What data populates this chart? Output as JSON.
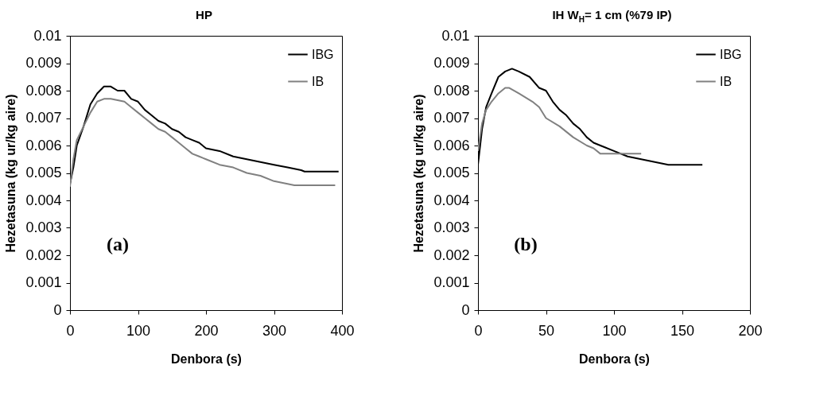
{
  "chart_data": [
    {
      "type": "line",
      "title": "HP",
      "xlabel": "Denbora (s)",
      "ylabel": "Hezetasuna (kg ur/kg aire)",
      "xlim": [
        0,
        400
      ],
      "xticks": [
        0,
        100,
        200,
        300,
        400
      ],
      "ylim": [
        0,
        0.01
      ],
      "yticks": [
        0,
        0.001,
        0.002,
        0.003,
        0.004,
        0.005,
        0.006,
        0.007,
        0.008,
        0.009,
        0.01
      ],
      "grid": false,
      "legend": "top right",
      "annotations": [
        "(a)"
      ],
      "series": [
        {
          "name": "IBG",
          "color": "#000000",
          "x": [
            0,
            5,
            10,
            20,
            30,
            40,
            50,
            60,
            70,
            80,
            90,
            100,
            110,
            120,
            130,
            140,
            150,
            160,
            170,
            180,
            190,
            200,
            220,
            240,
            260,
            280,
            300,
            320,
            340,
            345,
            395
          ],
          "values": [
            0.0046,
            0.0052,
            0.006,
            0.0067,
            0.0075,
            0.0079,
            0.00815,
            0.00815,
            0.008,
            0.008,
            0.0077,
            0.0076,
            0.0073,
            0.0071,
            0.0069,
            0.0068,
            0.0066,
            0.0065,
            0.0063,
            0.0062,
            0.0061,
            0.0059,
            0.0058,
            0.0056,
            0.0055,
            0.0054,
            0.0053,
            0.0052,
            0.0051,
            0.00505,
            0.00505
          ]
        },
        {
          "name": "IB",
          "color": "#808080",
          "x": [
            0,
            5,
            10,
            20,
            30,
            40,
            50,
            60,
            70,
            80,
            90,
            100,
            110,
            120,
            130,
            140,
            150,
            160,
            170,
            180,
            190,
            200,
            220,
            240,
            260,
            280,
            300,
            320,
            330,
            390
          ],
          "values": [
            0.0045,
            0.0055,
            0.0062,
            0.0067,
            0.0072,
            0.0076,
            0.0077,
            0.0077,
            0.00765,
            0.0076,
            0.0074,
            0.0072,
            0.007,
            0.0068,
            0.0066,
            0.0065,
            0.0063,
            0.0061,
            0.0059,
            0.0057,
            0.0056,
            0.0055,
            0.0053,
            0.0052,
            0.005,
            0.0049,
            0.0047,
            0.0046,
            0.00455,
            0.00455
          ]
        }
      ]
    },
    {
      "type": "line",
      "title": "IH W$_{H}$= 1 cm (%79 IP)",
      "xlabel": "Denbora (s)",
      "ylabel": "Hezetasuna (kg ur/kg aire)",
      "xlim": [
        0,
        200
      ],
      "xticks": [
        0,
        50,
        100,
        150,
        200
      ],
      "ylim": [
        0,
        0.01
      ],
      "yticks": [
        0,
        0.001,
        0.002,
        0.003,
        0.004,
        0.005,
        0.006,
        0.007,
        0.008,
        0.009,
        0.01
      ],
      "grid": false,
      "legend": "top right",
      "annotations": [
        "(b)"
      ],
      "series": [
        {
          "name": "IBG",
          "color": "#000000",
          "x": [
            0,
            3,
            6,
            10,
            15,
            20,
            25,
            30,
            38,
            45,
            50,
            55,
            60,
            65,
            70,
            75,
            80,
            85,
            90,
            100,
            110,
            120,
            130,
            140,
            165
          ],
          "values": [
            0.0053,
            0.0066,
            0.0074,
            0.0079,
            0.0085,
            0.0087,
            0.0088,
            0.0087,
            0.0085,
            0.0081,
            0.008,
            0.0076,
            0.0073,
            0.0071,
            0.0068,
            0.0066,
            0.0063,
            0.0061,
            0.006,
            0.0058,
            0.0056,
            0.0055,
            0.0054,
            0.0053,
            0.0053
          ]
        },
        {
          "name": "IB",
          "color": "#808080",
          "x": [
            0,
            3,
            6,
            10,
            15,
            20,
            23,
            30,
            40,
            45,
            50,
            60,
            70,
            80,
            85,
            90,
            120
          ],
          "values": [
            0.0058,
            0.0068,
            0.0073,
            0.0076,
            0.0079,
            0.0081,
            0.0081,
            0.0079,
            0.0076,
            0.0074,
            0.007,
            0.0067,
            0.0063,
            0.006,
            0.0059,
            0.0057,
            0.0057
          ]
        }
      ]
    }
  ]
}
